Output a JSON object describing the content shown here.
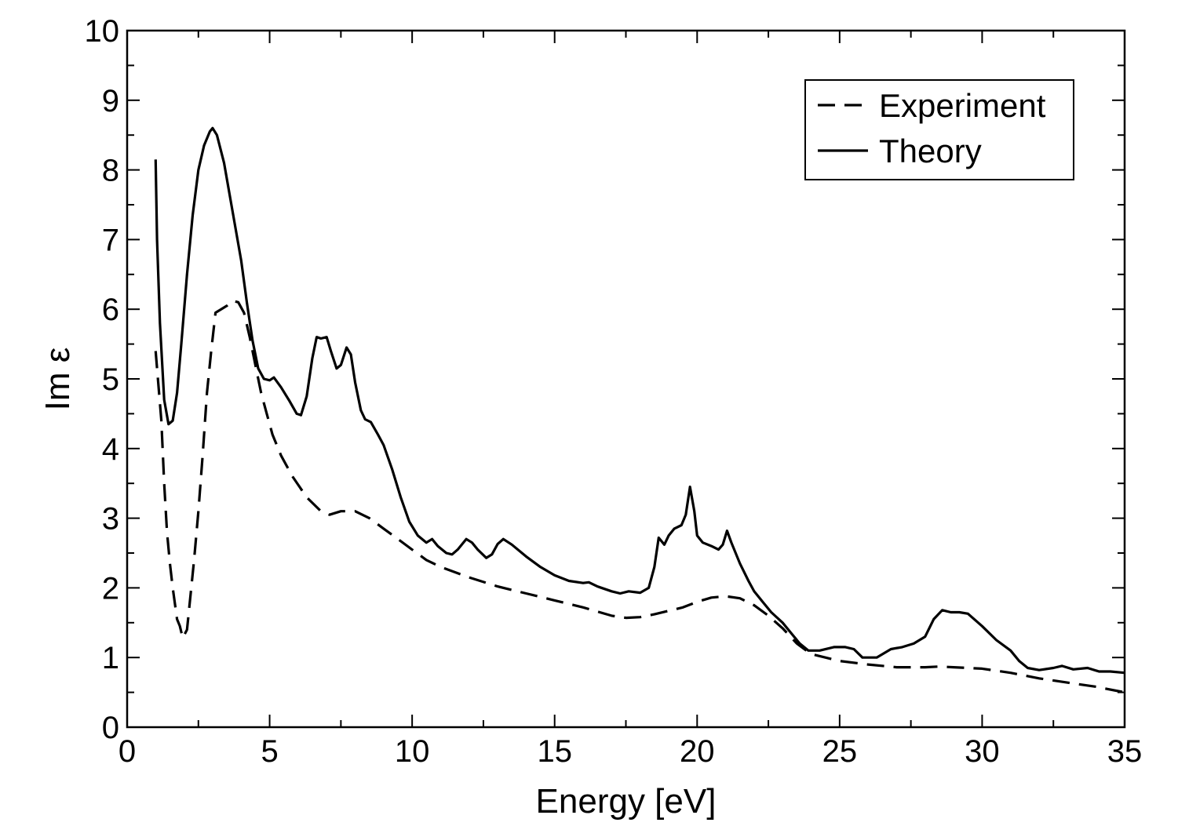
{
  "chart_data": {
    "type": "line",
    "title": "",
    "xlabel": "Energy [eV]",
    "ylabel": "Im ε",
    "xlim": [
      0,
      35
    ],
    "ylim": [
      0,
      10
    ],
    "x_ticks": [
      "0",
      "5",
      "10",
      "15",
      "20",
      "25",
      "30",
      "35"
    ],
    "y_ticks": [
      "0",
      "1",
      "2",
      "3",
      "4",
      "5",
      "6",
      "7",
      "8",
      "9",
      "10"
    ],
    "grid": false,
    "legend_position": "top-right",
    "series": [
      {
        "name": "Experiment",
        "style": "dashed",
        "color": "#000000",
        "points": [
          [
            1.0,
            5.4
          ],
          [
            1.2,
            4.4
          ],
          [
            1.3,
            3.5
          ],
          [
            1.4,
            2.8
          ],
          [
            1.5,
            2.35
          ],
          [
            1.6,
            2.0
          ],
          [
            1.75,
            1.55
          ],
          [
            1.85,
            1.45
          ],
          [
            1.95,
            1.28
          ],
          [
            2.1,
            1.4
          ],
          [
            2.2,
            1.8
          ],
          [
            2.35,
            2.4
          ],
          [
            2.5,
            3.1
          ],
          [
            2.65,
            3.9
          ],
          [
            2.8,
            4.8
          ],
          [
            2.95,
            5.4
          ],
          [
            3.1,
            5.95
          ],
          [
            3.3,
            6.0
          ],
          [
            3.5,
            6.05
          ],
          [
            3.7,
            6.12
          ],
          [
            3.9,
            6.1
          ],
          [
            4.1,
            5.95
          ],
          [
            4.3,
            5.6
          ],
          [
            4.5,
            5.2
          ],
          [
            4.7,
            4.8
          ],
          [
            4.9,
            4.5
          ],
          [
            5.1,
            4.2
          ],
          [
            5.4,
            3.9
          ],
          [
            5.8,
            3.6
          ],
          [
            6.3,
            3.3
          ],
          [
            6.8,
            3.1
          ],
          [
            7.1,
            3.05
          ],
          [
            7.5,
            3.1
          ],
          [
            8.0,
            3.1
          ],
          [
            8.5,
            3.0
          ],
          [
            9.0,
            2.85
          ],
          [
            9.5,
            2.7
          ],
          [
            10.0,
            2.55
          ],
          [
            10.5,
            2.4
          ],
          [
            11.0,
            2.3
          ],
          [
            12.0,
            2.15
          ],
          [
            13.0,
            2.02
          ],
          [
            14.0,
            1.92
          ],
          [
            15.0,
            1.82
          ],
          [
            16.0,
            1.72
          ],
          [
            17.0,
            1.6
          ],
          [
            17.5,
            1.57
          ],
          [
            18.0,
            1.58
          ],
          [
            18.5,
            1.62
          ],
          [
            19.0,
            1.67
          ],
          [
            19.5,
            1.72
          ],
          [
            20.0,
            1.8
          ],
          [
            20.5,
            1.86
          ],
          [
            21.0,
            1.88
          ],
          [
            21.5,
            1.85
          ],
          [
            22.0,
            1.75
          ],
          [
            22.5,
            1.6
          ],
          [
            23.0,
            1.42
          ],
          [
            23.5,
            1.2
          ],
          [
            24.0,
            1.05
          ],
          [
            24.5,
            1.0
          ],
          [
            25.0,
            0.95
          ],
          [
            26.0,
            0.9
          ],
          [
            27.0,
            0.86
          ],
          [
            28.0,
            0.86
          ],
          [
            28.5,
            0.87
          ],
          [
            29.0,
            0.86
          ],
          [
            30.0,
            0.84
          ],
          [
            31.0,
            0.78
          ],
          [
            32.0,
            0.7
          ],
          [
            33.0,
            0.64
          ],
          [
            34.0,
            0.58
          ],
          [
            35.0,
            0.5
          ]
        ]
      },
      {
        "name": "Theory",
        "style": "solid",
        "color": "#000000",
        "points": [
          [
            1.0,
            8.15
          ],
          [
            1.05,
            7.0
          ],
          [
            1.15,
            5.8
          ],
          [
            1.3,
            4.7
          ],
          [
            1.45,
            4.35
          ],
          [
            1.6,
            4.4
          ],
          [
            1.75,
            4.8
          ],
          [
            1.9,
            5.5
          ],
          [
            2.1,
            6.5
          ],
          [
            2.3,
            7.35
          ],
          [
            2.5,
            8.0
          ],
          [
            2.7,
            8.35
          ],
          [
            2.9,
            8.55
          ],
          [
            3.0,
            8.6
          ],
          [
            3.15,
            8.5
          ],
          [
            3.4,
            8.1
          ],
          [
            3.7,
            7.4
          ],
          [
            4.0,
            6.7
          ],
          [
            4.2,
            6.1
          ],
          [
            4.4,
            5.55
          ],
          [
            4.6,
            5.15
          ],
          [
            4.8,
            5.0
          ],
          [
            5.0,
            4.98
          ],
          [
            5.15,
            5.02
          ],
          [
            5.4,
            4.88
          ],
          [
            5.7,
            4.68
          ],
          [
            5.95,
            4.5
          ],
          [
            6.1,
            4.48
          ],
          [
            6.3,
            4.75
          ],
          [
            6.5,
            5.3
          ],
          [
            6.65,
            5.6
          ],
          [
            6.8,
            5.58
          ],
          [
            7.0,
            5.6
          ],
          [
            7.15,
            5.4
          ],
          [
            7.35,
            5.15
          ],
          [
            7.5,
            5.2
          ],
          [
            7.7,
            5.45
          ],
          [
            7.85,
            5.35
          ],
          [
            8.0,
            4.95
          ],
          [
            8.2,
            4.55
          ],
          [
            8.35,
            4.42
          ],
          [
            8.55,
            4.38
          ],
          [
            8.8,
            4.2
          ],
          [
            9.0,
            4.05
          ],
          [
            9.3,
            3.7
          ],
          [
            9.6,
            3.3
          ],
          [
            9.9,
            2.95
          ],
          [
            10.2,
            2.75
          ],
          [
            10.5,
            2.65
          ],
          [
            10.7,
            2.7
          ],
          [
            10.9,
            2.6
          ],
          [
            11.2,
            2.5
          ],
          [
            11.4,
            2.48
          ],
          [
            11.6,
            2.55
          ],
          [
            11.9,
            2.7
          ],
          [
            12.1,
            2.65
          ],
          [
            12.3,
            2.55
          ],
          [
            12.6,
            2.43
          ],
          [
            12.8,
            2.48
          ],
          [
            13.0,
            2.63
          ],
          [
            13.2,
            2.7
          ],
          [
            13.5,
            2.62
          ],
          [
            14.0,
            2.45
          ],
          [
            14.5,
            2.3
          ],
          [
            15.0,
            2.18
          ],
          [
            15.5,
            2.1
          ],
          [
            16.0,
            2.07
          ],
          [
            16.2,
            2.08
          ],
          [
            16.5,
            2.02
          ],
          [
            17.0,
            1.95
          ],
          [
            17.3,
            1.92
          ],
          [
            17.6,
            1.95
          ],
          [
            18.0,
            1.93
          ],
          [
            18.3,
            2.0
          ],
          [
            18.5,
            2.3
          ],
          [
            18.65,
            2.72
          ],
          [
            18.85,
            2.62
          ],
          [
            19.0,
            2.75
          ],
          [
            19.2,
            2.85
          ],
          [
            19.45,
            2.9
          ],
          [
            19.6,
            3.05
          ],
          [
            19.75,
            3.45
          ],
          [
            19.9,
            3.1
          ],
          [
            20.0,
            2.75
          ],
          [
            20.2,
            2.65
          ],
          [
            20.5,
            2.6
          ],
          [
            20.75,
            2.55
          ],
          [
            20.9,
            2.62
          ],
          [
            21.05,
            2.82
          ],
          [
            21.2,
            2.65
          ],
          [
            21.5,
            2.35
          ],
          [
            21.8,
            2.1
          ],
          [
            22.0,
            1.95
          ],
          [
            22.3,
            1.8
          ],
          [
            22.6,
            1.65
          ],
          [
            23.0,
            1.5
          ],
          [
            23.3,
            1.35
          ],
          [
            23.6,
            1.2
          ],
          [
            23.9,
            1.1
          ],
          [
            24.3,
            1.1
          ],
          [
            24.8,
            1.15
          ],
          [
            25.2,
            1.15
          ],
          [
            25.5,
            1.12
          ],
          [
            25.8,
            1.0
          ],
          [
            26.3,
            1.0
          ],
          [
            26.8,
            1.12
          ],
          [
            27.2,
            1.15
          ],
          [
            27.6,
            1.2
          ],
          [
            28.0,
            1.3
          ],
          [
            28.3,
            1.55
          ],
          [
            28.6,
            1.68
          ],
          [
            28.9,
            1.65
          ],
          [
            29.2,
            1.65
          ],
          [
            29.5,
            1.63
          ],
          [
            30.0,
            1.45
          ],
          [
            30.5,
            1.25
          ],
          [
            31.0,
            1.1
          ],
          [
            31.3,
            0.95
          ],
          [
            31.6,
            0.85
          ],
          [
            32.0,
            0.82
          ],
          [
            32.5,
            0.85
          ],
          [
            32.8,
            0.88
          ],
          [
            33.2,
            0.83
          ],
          [
            33.7,
            0.85
          ],
          [
            34.1,
            0.8
          ],
          [
            34.5,
            0.8
          ],
          [
            35.0,
            0.78
          ]
        ]
      }
    ]
  }
}
